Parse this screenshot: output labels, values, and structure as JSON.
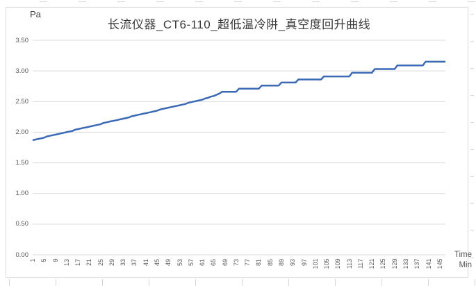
{
  "title": "长流仪器_CT6-110_超低温冷阱_真空度回升曲线",
  "y_axis": {
    "unit_label": "Pa"
  },
  "x_axis": {
    "title_line1": "Time",
    "title_line2": "Min"
  },
  "colors": {
    "series_line": "#3b69b5",
    "gridline": "#d9d9d9",
    "tick_text": "#595959",
    "title_text": "#383838"
  },
  "chart_data": {
    "type": "line",
    "title": "长流仪器_CT6-110_超低温冷阱_真空度回升曲线",
    "y_unit": "Pa",
    "x_unit_label": "Time Min",
    "ylim": [
      0,
      3.5
    ],
    "y_tick_step": 0.5,
    "y_tick_labels": [
      "3.50",
      "3.00",
      "2.50",
      "2.00",
      "1.50",
      "1.00",
      "0.50",
      "0.00"
    ],
    "grid": "horizontal",
    "legend": "none",
    "x_start_minute": 1,
    "x_step_minutes": 1,
    "x_tick_labels": [
      1,
      5,
      9,
      13,
      17,
      21,
      25,
      29,
      33,
      37,
      41,
      45,
      49,
      53,
      57,
      61,
      65,
      69,
      73,
      77,
      81,
      85,
      89,
      93,
      97,
      101,
      105,
      109,
      113,
      117,
      121,
      125,
      129,
      133,
      137,
      141,
      145
    ],
    "values": [
      1.87,
      1.88,
      1.89,
      1.9,
      1.91,
      1.93,
      1.94,
      1.95,
      1.96,
      1.97,
      1.98,
      1.99,
      2.0,
      2.01,
      2.02,
      2.04,
      2.05,
      2.06,
      2.07,
      2.08,
      2.09,
      2.1,
      2.11,
      2.12,
      2.13,
      2.15,
      2.16,
      2.17,
      2.18,
      2.19,
      2.2,
      2.21,
      2.22,
      2.23,
      2.24,
      2.26,
      2.27,
      2.28,
      2.29,
      2.3,
      2.31,
      2.32,
      2.33,
      2.34,
      2.35,
      2.37,
      2.38,
      2.39,
      2.4,
      2.41,
      2.42,
      2.43,
      2.44,
      2.45,
      2.46,
      2.48,
      2.49,
      2.5,
      2.51,
      2.52,
      2.53,
      2.55,
      2.56,
      2.58,
      2.59,
      2.61,
      2.63,
      2.66,
      2.66,
      2.66,
      2.66,
      2.66,
      2.66,
      2.71,
      2.71,
      2.71,
      2.71,
      2.71,
      2.71,
      2.71,
      2.71,
      2.76,
      2.76,
      2.76,
      2.76,
      2.76,
      2.76,
      2.76,
      2.81,
      2.81,
      2.81,
      2.81,
      2.81,
      2.81,
      2.86,
      2.86,
      2.86,
      2.86,
      2.86,
      2.86,
      2.86,
      2.86,
      2.86,
      2.91,
      2.91,
      2.91,
      2.91,
      2.91,
      2.91,
      2.91,
      2.91,
      2.91,
      2.91,
      2.97,
      2.97,
      2.97,
      2.97,
      2.97,
      2.97,
      2.97,
      2.97,
      3.03,
      3.03,
      3.03,
      3.03,
      3.03,
      3.03,
      3.03,
      3.03,
      3.09,
      3.09,
      3.09,
      3.09,
      3.09,
      3.09,
      3.09,
      3.09,
      3.09,
      3.09,
      3.15,
      3.15,
      3.15,
      3.15,
      3.15,
      3.15,
      3.15,
      3.15
    ]
  }
}
